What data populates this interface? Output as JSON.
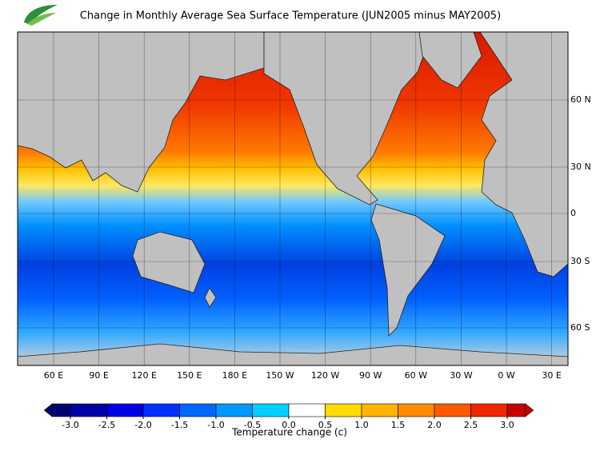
{
  "title": "Change in Monthly Average Sea Surface Temperature (JUN2005 minus MAY2005)",
  "map": {
    "x_labels": [
      "60 E",
      "90 E",
      "120 E",
      "150 E",
      "180 E",
      "150 W",
      "120 W",
      "90 W",
      "60 W",
      "30 W",
      "0 W",
      "30 E"
    ],
    "y_labels": [
      "60 N",
      "30 N",
      "0",
      "30 S",
      "60 S"
    ]
  },
  "colorbar": {
    "label": "Temperature change  (c)",
    "ticks": [
      {
        "value": -3,
        "label": "-3.0"
      },
      {
        "value": -2.5,
        "label": "-2.5"
      },
      {
        "value": -2,
        "label": "-2.0"
      },
      {
        "value": -1.5,
        "label": "-1.5"
      },
      {
        "value": -1,
        "label": "-1.0"
      },
      {
        "value": -0.5,
        "label": "-0.5"
      },
      {
        "value": 0,
        "label": "0.0"
      },
      {
        "value": 0.5,
        "label": "0.5"
      },
      {
        "value": 1,
        "label": "1.0"
      },
      {
        "value": 1.5,
        "label": "1.5"
      },
      {
        "value": 2,
        "label": "2.0"
      },
      {
        "value": 2.5,
        "label": "2.5"
      },
      {
        "value": 3,
        "label": "3.0"
      }
    ],
    "colors": [
      "#000070",
      "#0000a8",
      "#0000e0",
      "#0030ff",
      "#0068ff",
      "#0098ff",
      "#00d0ff",
      "#ffffff",
      "#ffdc00",
      "#ffb400",
      "#ff8c00",
      "#ff5a00",
      "#f02800",
      "#c80000"
    ]
  }
}
